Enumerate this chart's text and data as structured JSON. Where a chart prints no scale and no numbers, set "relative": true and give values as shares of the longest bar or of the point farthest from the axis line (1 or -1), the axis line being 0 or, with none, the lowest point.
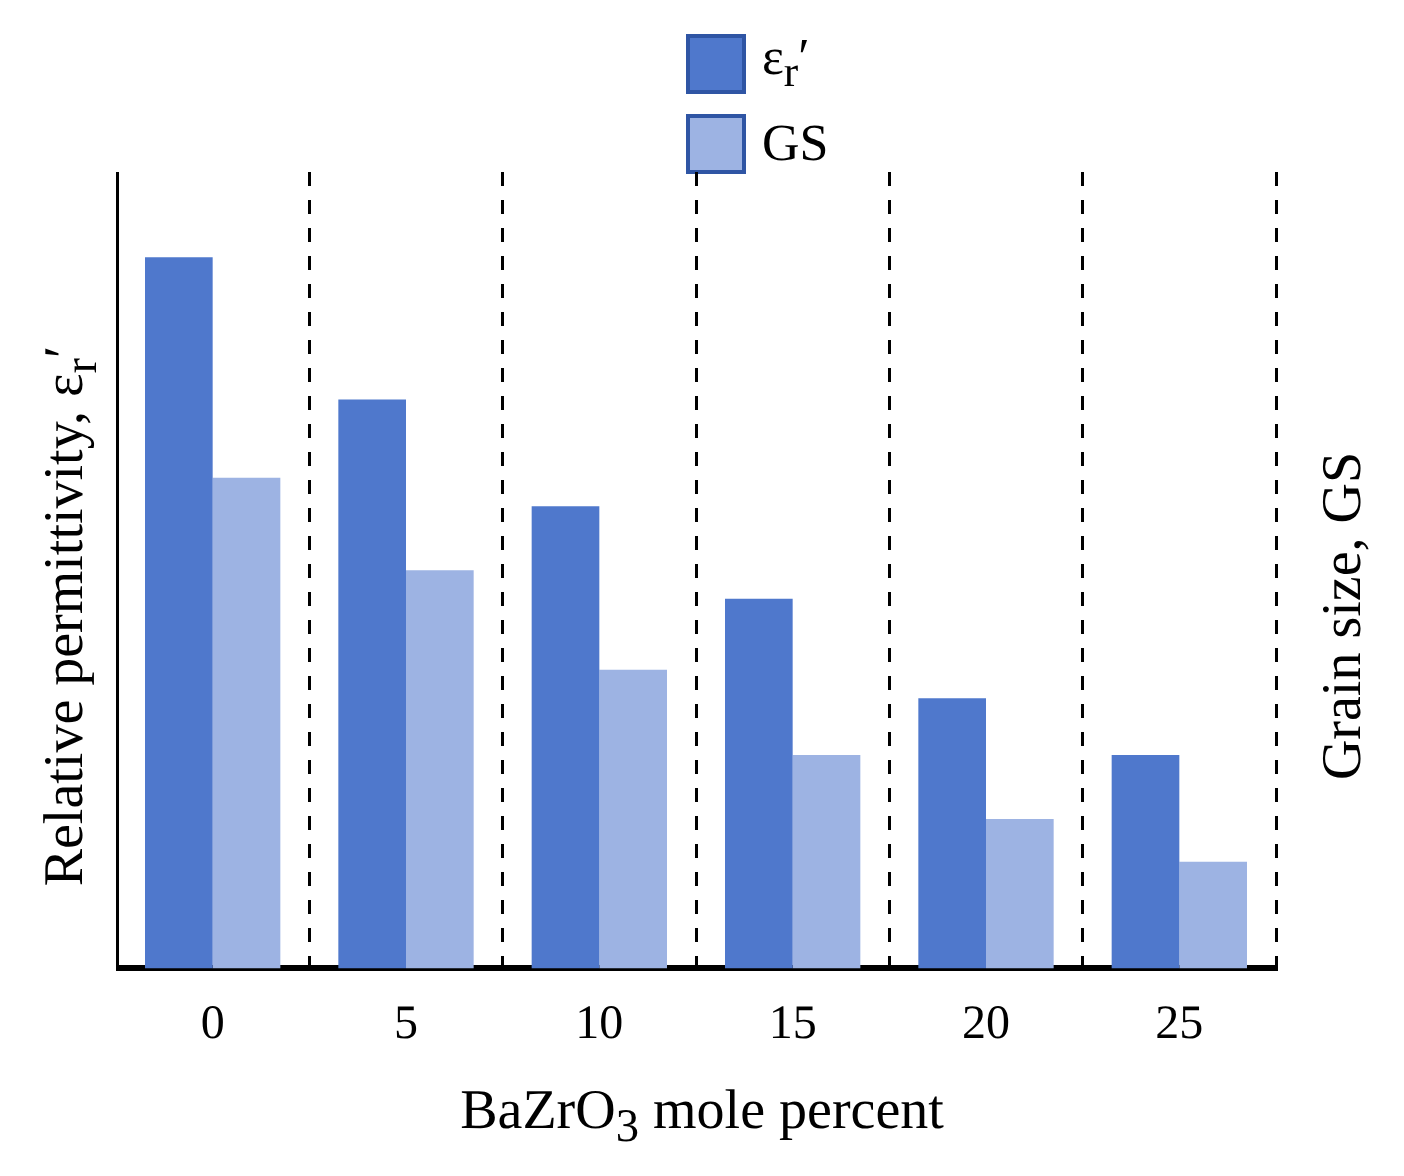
{
  "chart_data": {
    "type": "bar",
    "relative": true,
    "categories": [
      "0",
      "5",
      "10",
      "15",
      "20",
      "25"
    ],
    "series": [
      {
        "name": "ε$_{r}$′",
        "color": "#4f78cc",
        "values": [
          1,
          0.8,
          0.65,
          0.52,
          0.38,
          0.3
        ]
      },
      {
        "name": "GS",
        "color": "#9db3e3",
        "values": [
          0.69,
          0.56,
          0.42,
          0.3,
          0.21,
          0.15
        ]
      }
    ],
    "xlabel": "BaZrO$_{3}$ mole percent",
    "ylabel": "Relative permittivity, ε$_{r}$′",
    "y2label": "Grain size, GS",
    "grid": "x",
    "legend": "top",
    "line_style": "dashed"
  }
}
